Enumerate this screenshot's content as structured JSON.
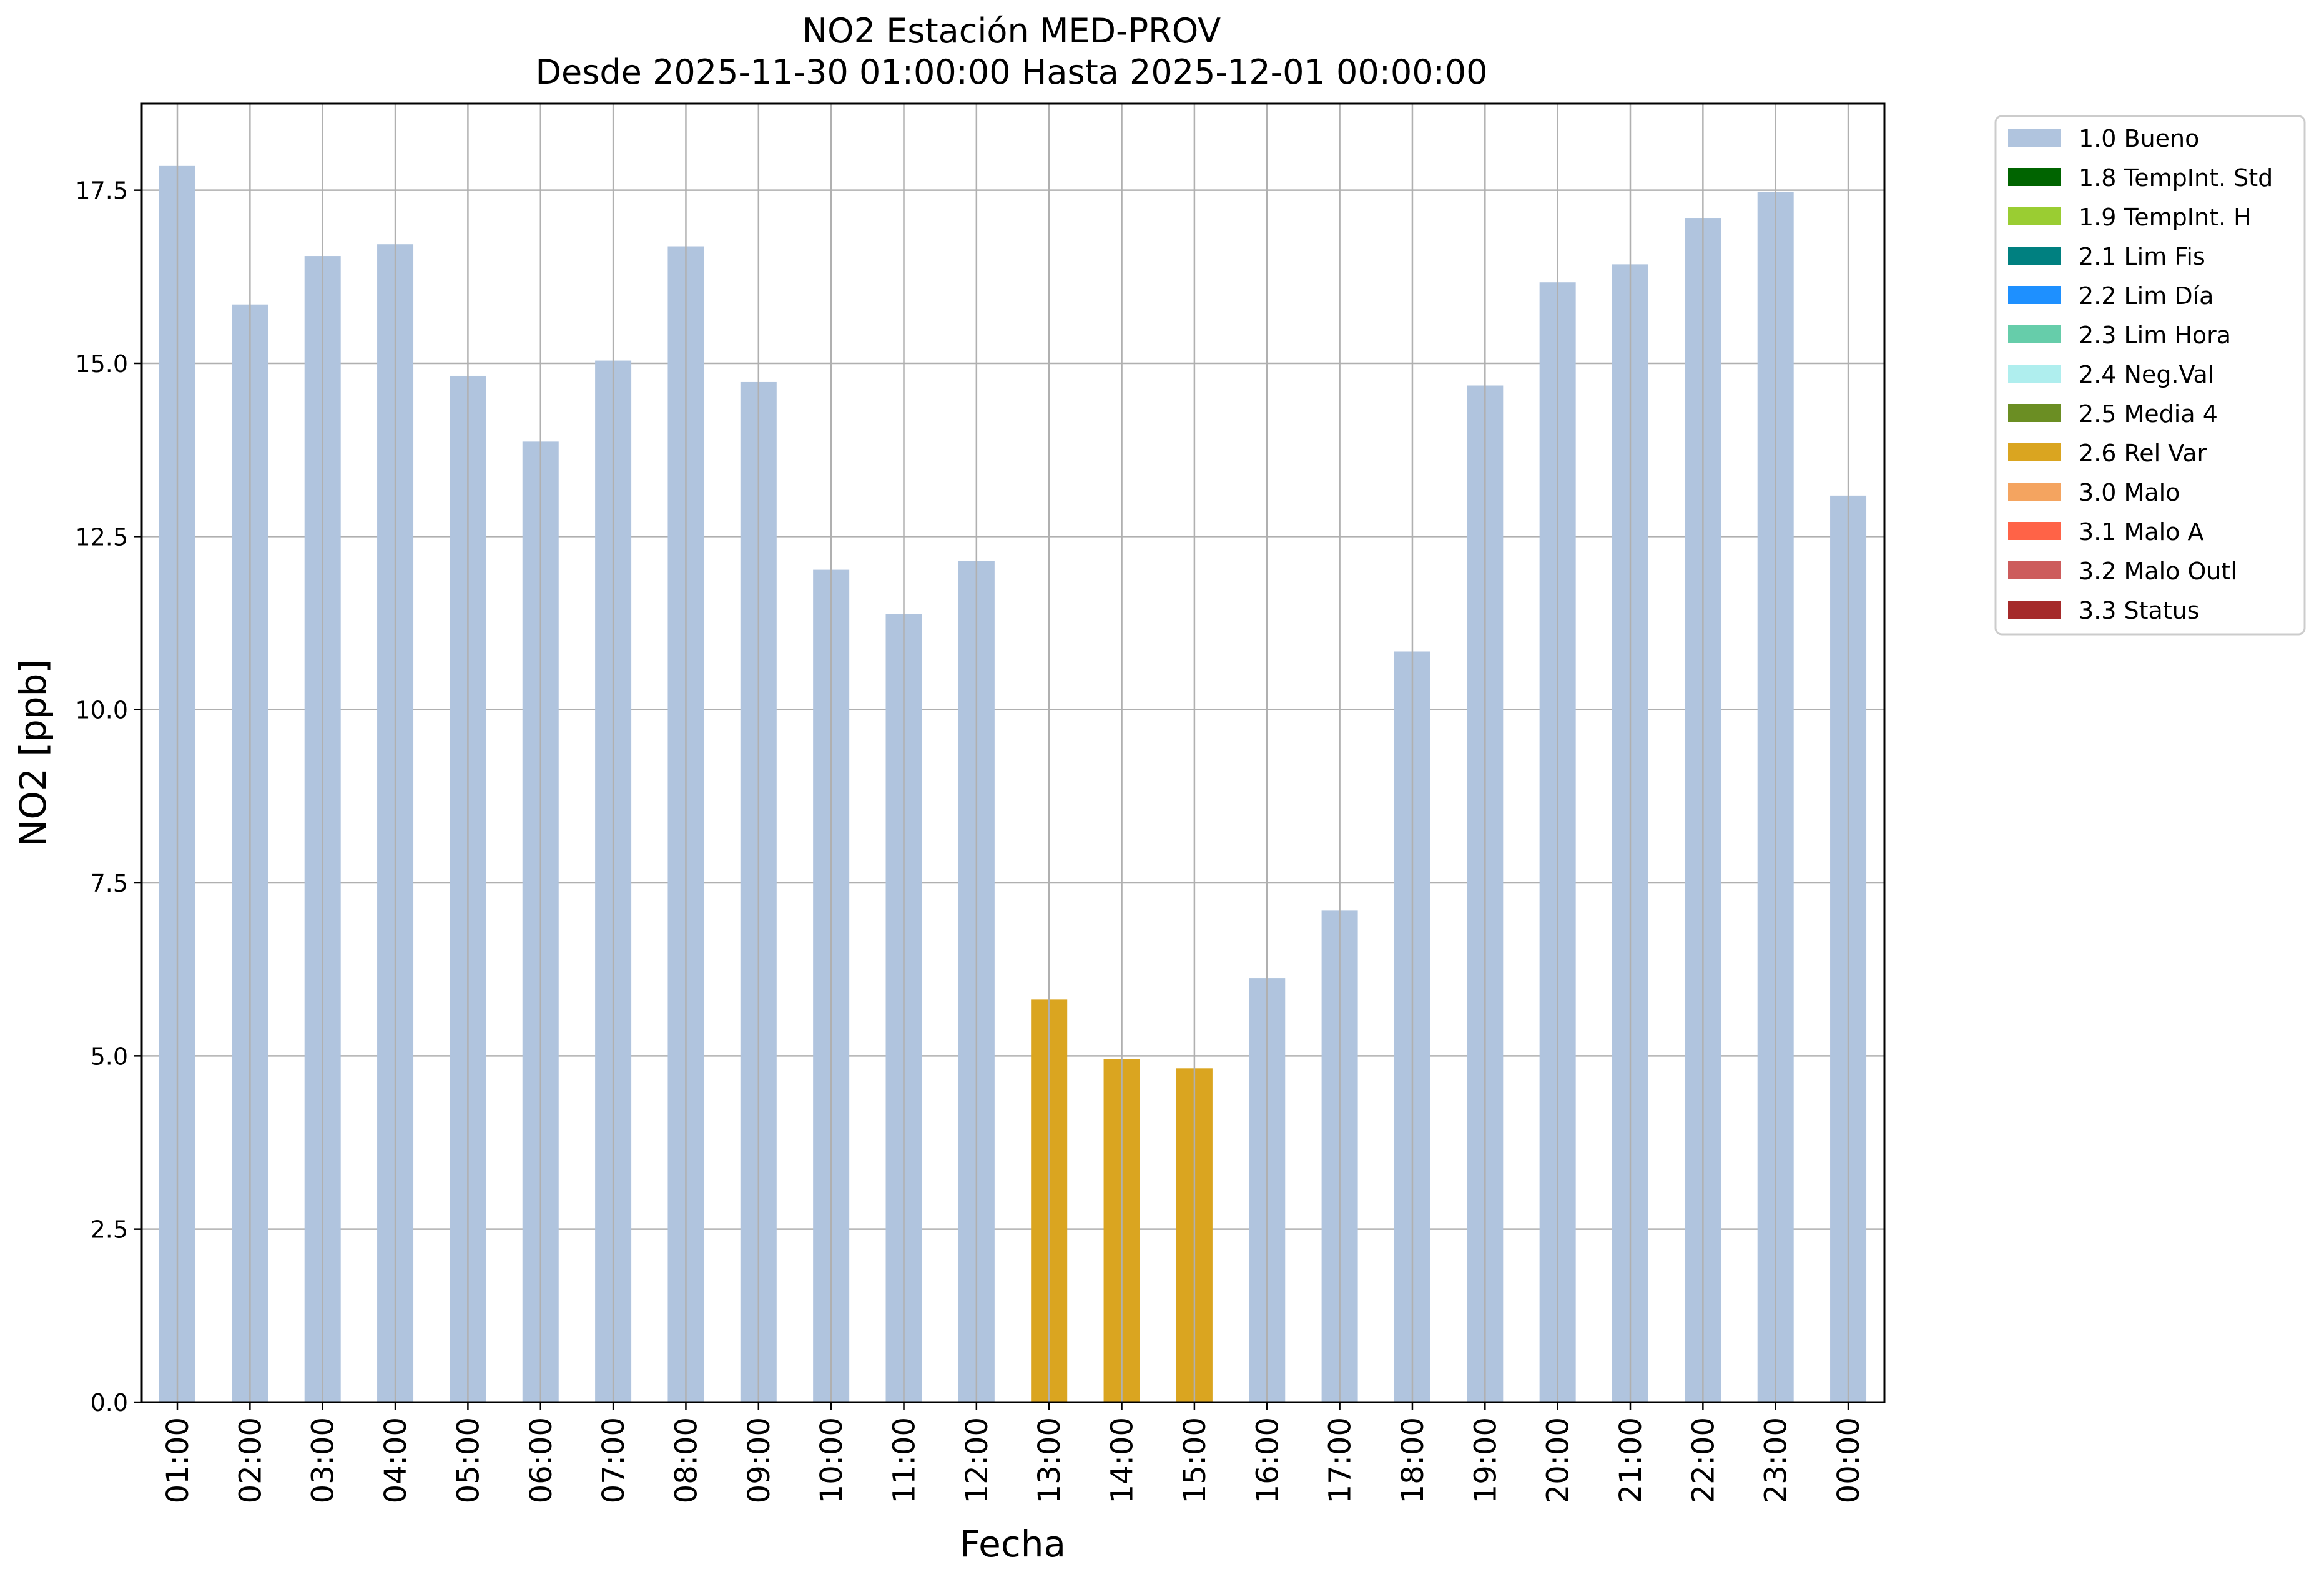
{
  "chart_data": {
    "type": "bar",
    "title": "NO2 Estación MED-PROV",
    "subtitle": "Desde 2025-11-30 01:00:00 Hasta 2025-12-01 00:00:00",
    "xlabel": "Fecha",
    "ylabel": "NO2 [ppb]",
    "ylim": [
      0,
      18.75
    ],
    "yticks": [
      "0.0",
      "2.5",
      "5.0",
      "7.5",
      "10.0",
      "12.5",
      "15.0",
      "17.5"
    ],
    "grid": true,
    "legend_position": "outside-top-right",
    "categories": [
      "01:00",
      "02:00",
      "03:00",
      "04:00",
      "05:00",
      "06:00",
      "07:00",
      "08:00",
      "09:00",
      "10:00",
      "11:00",
      "12:00",
      "13:00",
      "14:00",
      "15:00",
      "16:00",
      "17:00",
      "18:00",
      "19:00",
      "20:00",
      "21:00",
      "22:00",
      "23:00",
      "00:00"
    ],
    "values": [
      17.85,
      15.85,
      16.55,
      16.72,
      14.82,
      13.87,
      15.04,
      16.69,
      14.73,
      12.02,
      11.38,
      12.15,
      5.82,
      4.95,
      4.82,
      6.12,
      7.1,
      10.84,
      14.68,
      16.17,
      16.43,
      17.1,
      17.47,
      13.09
    ],
    "flags": [
      "1.0 Bueno",
      "1.0 Bueno",
      "1.0 Bueno",
      "1.0 Bueno",
      "1.0 Bueno",
      "1.0 Bueno",
      "1.0 Bueno",
      "1.0 Bueno",
      "1.0 Bueno",
      "1.0 Bueno",
      "1.0 Bueno",
      "1.0 Bueno",
      "2.6 Rel Var",
      "2.6 Rel Var",
      "2.6 Rel Var",
      "1.0 Bueno",
      "1.0 Bueno",
      "1.0 Bueno",
      "1.0 Bueno",
      "1.0 Bueno",
      "1.0 Bueno",
      "1.0 Bueno",
      "1.0 Bueno",
      "1.0 Bueno"
    ],
    "legend": [
      {
        "label": "1.0 Bueno",
        "color": "#b0c4de"
      },
      {
        "label": "1.8 TempInt. Std",
        "color": "#006400"
      },
      {
        "label": "1.9 TempInt. H",
        "color": "#9acd32"
      },
      {
        "label": "2.1 Lim Fis",
        "color": "#008080"
      },
      {
        "label": "2.2 Lim Día",
        "color": "#1e90ff"
      },
      {
        "label": "2.3 Lim Hora",
        "color": "#66cdaa"
      },
      {
        "label": "2.4 Neg.Val",
        "color": "#afeeee"
      },
      {
        "label": "2.5 Media 4",
        "color": "#6b8e23"
      },
      {
        "label": "2.6 Rel Var",
        "color": "#daa520"
      },
      {
        "label": "3.0 Malo",
        "color": "#f4a460"
      },
      {
        "label": "3.1 Malo A",
        "color": "#ff6347"
      },
      {
        "label": "3.2 Malo Outl",
        "color": "#cd5c5c"
      },
      {
        "label": "3.3 Status",
        "color": "#a52a2a"
      }
    ]
  }
}
